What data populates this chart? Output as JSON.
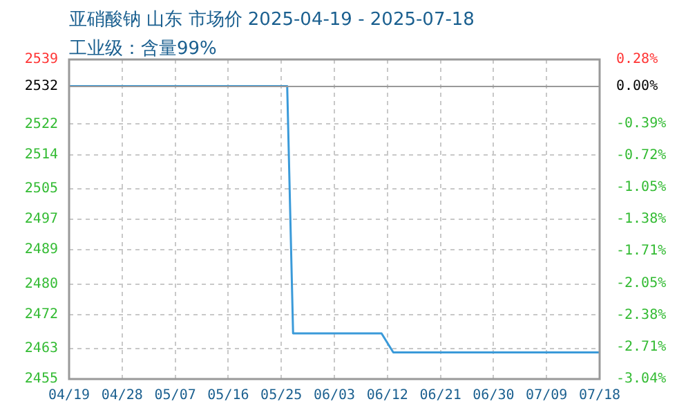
{
  "chart_data": {
    "type": "line",
    "title": "亚硝酸钠 山东 市场价 2025-04-19 - 2025-07-18",
    "subtitle": "工业级：含量99%",
    "series": [
      {
        "color": "#3a9ad9",
        "x": [
          "2025-04-19",
          "2025-05-26",
          "2025-05-27",
          "2025-06-11",
          "2025-06-13",
          "2025-07-18"
        ],
        "values": [
          2532,
          2532,
          2467,
          2467,
          2462,
          2462
        ]
      }
    ],
    "xlim": [
      "2025-04-19",
      "2025-07-18"
    ],
    "xticks": [
      {
        "value": "2025-04-19",
        "label": "04/19"
      },
      {
        "value": "2025-04-28",
        "label": "04/28"
      },
      {
        "value": "2025-05-07",
        "label": "05/07"
      },
      {
        "value": "2025-05-16",
        "label": "05/16"
      },
      {
        "value": "2025-05-25",
        "label": "05/25"
      },
      {
        "value": "2025-06-03",
        "label": "06/03"
      },
      {
        "value": "2025-06-12",
        "label": "06/12"
      },
      {
        "value": "2025-06-21",
        "label": "06/21"
      },
      {
        "value": "2025-06-30",
        "label": "06/30"
      },
      {
        "value": "2025-07-09",
        "label": "07/09"
      },
      {
        "value": "2025-07-18",
        "label": "07/18"
      }
    ],
    "ylim": [
      2455,
      2539
    ],
    "yticks": [
      2455,
      2463,
      2472,
      2480,
      2489,
      2497,
      2505,
      2514,
      2522,
      2532,
      2539
    ],
    "y2lim": [
      -3.04,
      0.28
    ],
    "y2ticks": [
      {
        "value": -3.04,
        "label": "-3.04%"
      },
      {
        "value": -2.71,
        "label": "-2.71%"
      },
      {
        "value": -2.38,
        "label": "-2.38%"
      },
      {
        "value": -2.05,
        "label": "-2.05%"
      },
      {
        "value": -1.71,
        "label": "-1.71%"
      },
      {
        "value": -1.38,
        "label": "-1.38%"
      },
      {
        "value": -1.05,
        "label": "-1.05%"
      },
      {
        "value": -0.72,
        "label": "-0.72%"
      },
      {
        "value": -0.39,
        "label": "-0.39%"
      },
      {
        "value": 0,
        "label": "0.00%"
      },
      {
        "value": 0.28,
        "label": "0.28%"
      }
    ],
    "ref_lines": [
      {
        "axis": "y2",
        "value": 0,
        "color": "#999999"
      }
    ],
    "grid": true,
    "legend": false,
    "marker": "none",
    "line_style": "solid"
  }
}
